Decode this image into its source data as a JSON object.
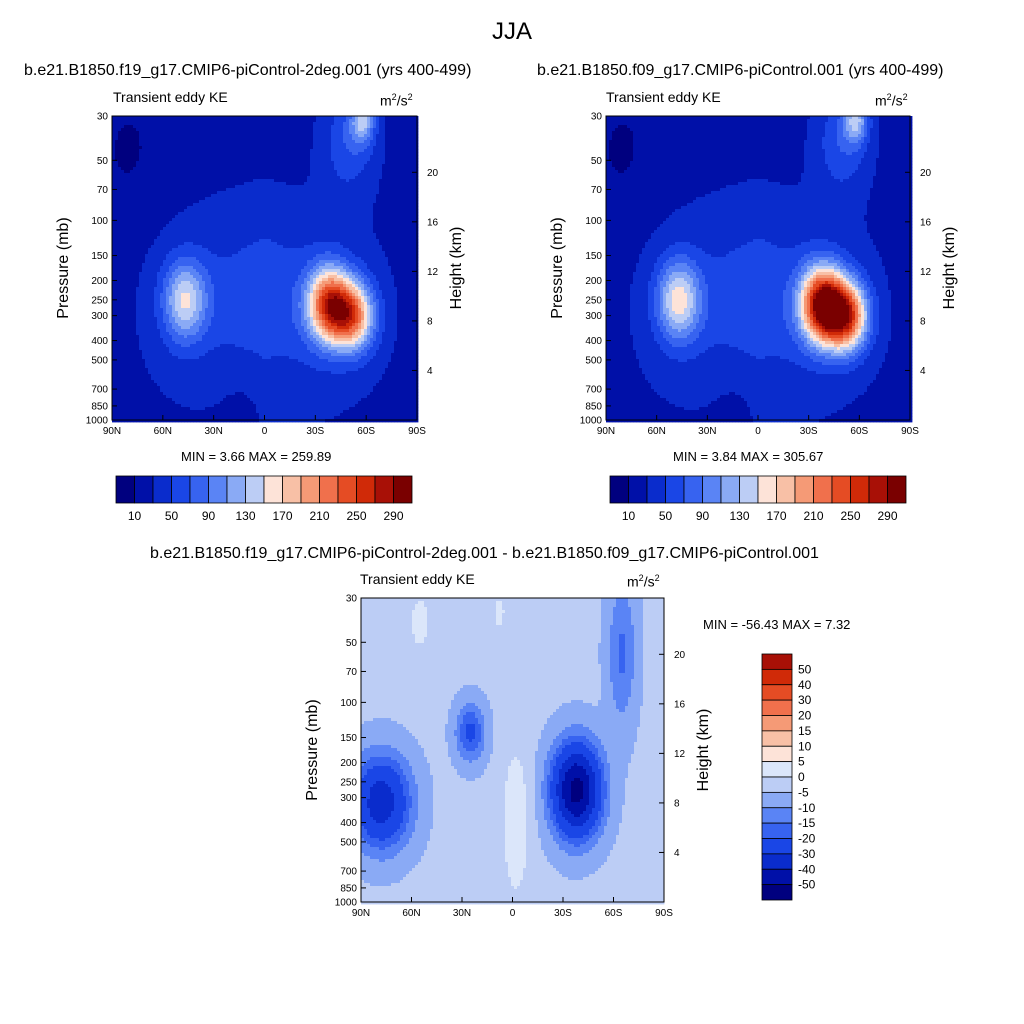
{
  "main_title": "JJA",
  "colors": {
    "ke_palette": [
      "#00007f",
      "#0010a8",
      "#0a2ccc",
      "#1a46e6",
      "#3763f0",
      "#5a84f5",
      "#8aaaf5",
      "#bccdf5",
      "#fde3d8",
      "#f8c0a6",
      "#f59a76",
      "#f0704c",
      "#e54c24",
      "#d02a08",
      "#a81006",
      "#7a0000"
    ],
    "diff_palette": [
      "#00007f",
      "#0010a8",
      "#0a2ccc",
      "#1a46e6",
      "#3763f0",
      "#5a84f5",
      "#8aaaf5",
      "#bccdf5",
      "#dbe6fa",
      "#fde3d8",
      "#f8c0a6",
      "#f59a76",
      "#f0704c",
      "#e54c24",
      "#d02a08",
      "#a81006"
    ]
  },
  "chart_data": [
    {
      "id": "left",
      "type": "contour",
      "title": "b.e21.B1850.f19_g17.CMIP6-piControl-2deg.001 (yrs 400-499)",
      "left_label": "Transient eddy KE",
      "right_label_base": "m",
      "right_label_exp1": "2",
      "right_label_mid": "/s",
      "right_label_exp2": "2",
      "ylabel": "Pressure (mb)",
      "y2label": "Height (km)",
      "x_ticks": [
        "90N",
        "60N",
        "30N",
        "0",
        "30S",
        "60S",
        "90S"
      ],
      "y_ticks": [
        "30",
        "50",
        "70",
        "100",
        "150",
        "200",
        "250",
        "300",
        "400",
        "500",
        "700",
        "850",
        "1000"
      ],
      "y2_ticks": [
        "20",
        "16",
        "12",
        "8",
        "4"
      ],
      "xlim": [
        90,
        -90
      ],
      "ylim_mb": [
        30,
        1000
      ],
      "stats": "MIN =   3.66  MAX = 259.89",
      "min": 3.66,
      "max": 259.89,
      "maxima": [
        {
          "lat": 47,
          "p": 250,
          "value": 140
        },
        {
          "lat": -38,
          "p": 250,
          "value": 259.89
        }
      ],
      "colorbar_labels": [
        "10",
        "50",
        "90",
        "130",
        "170",
        "210",
        "250",
        "290"
      ],
      "levels": [
        10,
        30,
        50,
        70,
        90,
        110,
        130,
        150,
        170,
        190,
        210,
        230,
        250,
        270,
        290
      ]
    },
    {
      "id": "right",
      "type": "contour",
      "title": "b.e21.B1850.f09_g17.CMIP6-piControl.001 (yrs 400-499)",
      "left_label": "Transient eddy KE",
      "right_label_base": "m",
      "right_label_exp1": "2",
      "right_label_mid": "/s",
      "right_label_exp2": "2",
      "ylabel": "Pressure (mb)",
      "y2label": "Height (km)",
      "x_ticks": [
        "90N",
        "60N",
        "30N",
        "0",
        "30S",
        "60S",
        "90S"
      ],
      "y_ticks": [
        "30",
        "50",
        "70",
        "100",
        "150",
        "200",
        "250",
        "300",
        "400",
        "500",
        "700",
        "850",
        "1000"
      ],
      "y2_ticks": [
        "20",
        "16",
        "12",
        "8",
        "4"
      ],
      "xlim": [
        90,
        -90
      ],
      "ylim_mb": [
        30,
        1000
      ],
      "stats": "MIN =   3.84  MAX = 305.67",
      "min": 3.84,
      "max": 305.67,
      "maxima": [
        {
          "lat": 47,
          "p": 250,
          "value": 150
        },
        {
          "lat": -38,
          "p": 250,
          "value": 305.67
        }
      ],
      "colorbar_labels": [
        "10",
        "50",
        "90",
        "130",
        "170",
        "210",
        "250",
        "290"
      ],
      "levels": [
        10,
        30,
        50,
        70,
        90,
        110,
        130,
        150,
        170,
        190,
        210,
        230,
        250,
        270,
        290
      ]
    },
    {
      "id": "diff",
      "type": "contour",
      "title": "b.e21.B1850.f19_g17.CMIP6-piControl-2deg.001 - b.e21.B1850.f09_g17.CMIP6-piControl.001",
      "left_label": "Transient eddy KE",
      "right_label_base": "m",
      "right_label_exp1": "2",
      "right_label_mid": "/s",
      "right_label_exp2": "2",
      "ylabel": "Pressure (mb)",
      "y2label": "Height (km)",
      "x_ticks": [
        "90N",
        "60N",
        "30N",
        "0",
        "30S",
        "60S",
        "90S"
      ],
      "y_ticks": [
        "30",
        "50",
        "70",
        "100",
        "150",
        "200",
        "250",
        "300",
        "400",
        "500",
        "700",
        "850",
        "1000"
      ],
      "y2_ticks": [
        "20",
        "16",
        "12",
        "8",
        "4"
      ],
      "xlim": [
        90,
        -90
      ],
      "ylim_mb": [
        30,
        1000
      ],
      "stats": "MIN = -56.43  MAX =   7.32",
      "min": -56.43,
      "max": 7.32,
      "colorbar_labels": [
        "50",
        "40",
        "30",
        "20",
        "15",
        "10",
        "5",
        "0",
        "-5",
        "-10",
        "-15",
        "-20",
        "-30",
        "-40",
        "-50"
      ],
      "levels": [
        -50,
        -40,
        -30,
        -20,
        -15,
        -10,
        -5,
        0,
        5,
        10,
        15,
        20,
        30,
        40,
        50
      ]
    }
  ]
}
